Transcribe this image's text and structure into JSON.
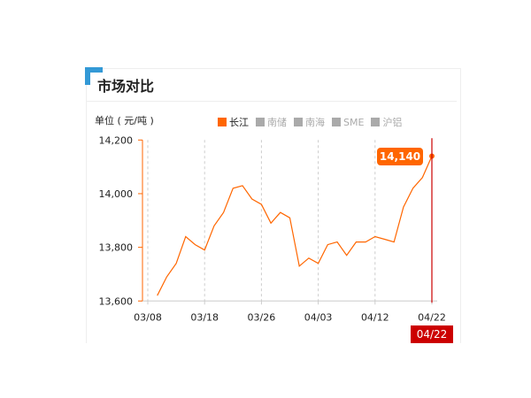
{
  "title": "市场对比",
  "unit_label": "单位 ( 元/吨 )",
  "legend": [
    {
      "label": "长江",
      "active": true
    },
    {
      "label": "南储",
      "active": false
    },
    {
      "label": "南海",
      "active": false
    },
    {
      "label": "SME",
      "active": false
    },
    {
      "label": "沪铝",
      "active": false
    }
  ],
  "colors": {
    "series": "#ff6600",
    "crosshair": "#cc0000",
    "accent": "#3399d6"
  },
  "tooltip": {
    "value": "14,140",
    "date": "04/22"
  },
  "chart_data": {
    "type": "line",
    "title": "",
    "xlabel": "",
    "ylabel": "单位 ( 元/吨 )",
    "ylim": [
      13600,
      14200
    ],
    "y_ticks": [
      "13,600",
      "13,800",
      "14,000",
      "14,200"
    ],
    "y_tick_values": [
      13600,
      13800,
      14000,
      14200
    ],
    "x_tick_labels": [
      "03/08",
      "03/18",
      "03/26",
      "04/03",
      "04/12",
      "04/22"
    ],
    "x_tick_every": 6,
    "grid": "vertical dashed",
    "legend_placement": "top",
    "series": [
      {
        "name": "长江",
        "values": [
          null,
          13620,
          13690,
          13740,
          13840,
          13810,
          13790,
          13880,
          13930,
          14020,
          14030,
          13980,
          13960,
          13890,
          13930,
          13910,
          13730,
          13760,
          13740,
          13810,
          13820,
          13770,
          13820,
          13820,
          13840,
          13830,
          13820,
          13950,
          14020,
          14060,
          14140
        ]
      }
    ]
  }
}
